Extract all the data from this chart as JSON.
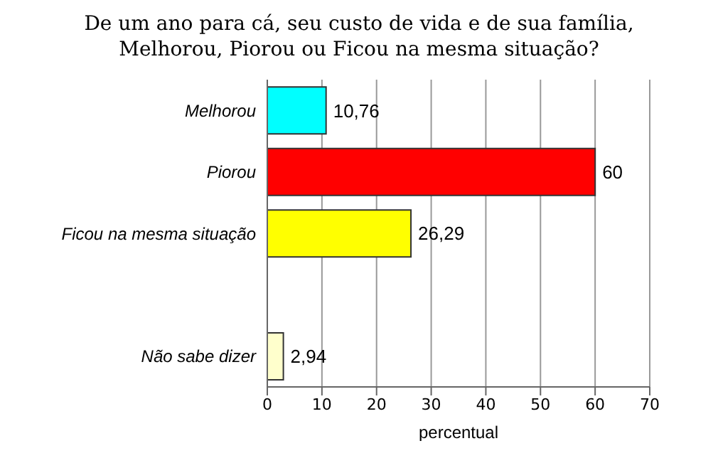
{
  "chart_data": {
    "type": "bar",
    "orientation": "horizontal",
    "title": "De um ano para cá, seu custo de vida e de sua família, Melhorou, Piorou ou Ficou na mesma situação?",
    "xlabel": "percentual",
    "categories": [
      "Melhorou",
      "Piorou",
      "Ficou na mesma situação",
      null,
      "Não sabe dizer"
    ],
    "values": [
      10.76,
      60,
      26.29,
      null,
      2.94
    ],
    "value_labels": [
      "10,76",
      "60",
      "26,29",
      null,
      "2,94"
    ],
    "colors": [
      "#00ffff",
      "#ff0000",
      "#ffff00",
      "#cccccc",
      "#ffffcc"
    ],
    "xlim": [
      0,
      70
    ],
    "xticks": [
      0,
      10,
      20,
      30,
      40,
      50,
      60,
      70
    ],
    "grid": "x"
  }
}
